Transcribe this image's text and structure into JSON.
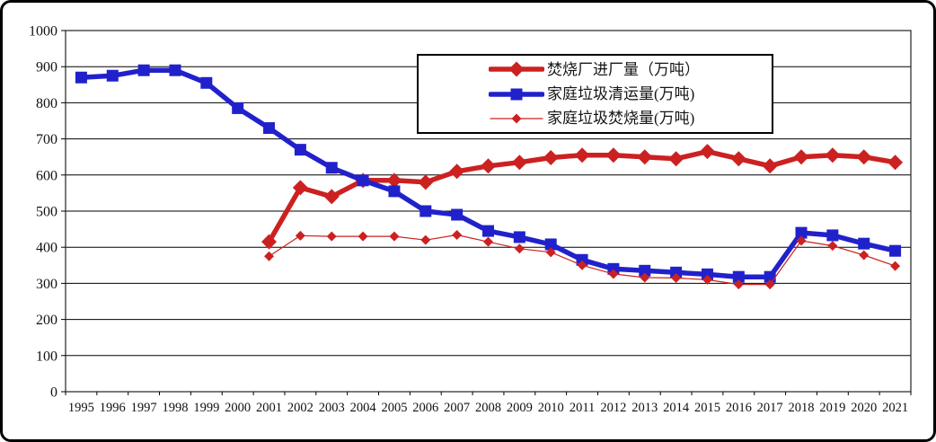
{
  "frame": {
    "background": "#ffffff",
    "border_color": "#000000",
    "plot_border_color": "#333333",
    "gridline_color": "#000000"
  },
  "chart_data": {
    "type": "line",
    "title": "",
    "xlabel": "",
    "ylabel": "",
    "grid": "horizontal",
    "legend_position": "top-center-boxed",
    "ylim": [
      0,
      1000
    ],
    "yticks": [
      0,
      100,
      200,
      300,
      400,
      500,
      600,
      700,
      800,
      900,
      1000
    ],
    "x": [
      "1995",
      "1996",
      "1997",
      "1998",
      "1999",
      "2000",
      "2001",
      "2002",
      "2003",
      "2004",
      "2005",
      "2006",
      "2007",
      "2008",
      "2009",
      "2010",
      "2011",
      "2012",
      "2013",
      "2014",
      "2015",
      "2016",
      "2017",
      "2018",
      "2019",
      "2020",
      "2021"
    ],
    "series": [
      {
        "name": "焚烧厂进厂量（万吨）",
        "color": "#cc2121",
        "line_width": 5.5,
        "marker": "diamond",
        "marker_size": 17,
        "values": [
          null,
          null,
          null,
          null,
          null,
          null,
          415,
          565,
          540,
          585,
          585,
          580,
          610,
          625,
          635,
          648,
          655,
          655,
          650,
          645,
          665,
          645,
          625,
          650,
          655,
          650,
          635
        ]
      },
      {
        "name": "家庭垃圾清运量(万吨)",
        "color": "#2121cc",
        "line_width": 5.5,
        "marker": "square",
        "marker_size": 13,
        "values": [
          870,
          875,
          890,
          890,
          855,
          785,
          730,
          670,
          620,
          585,
          555,
          500,
          490,
          445,
          428,
          408,
          365,
          340,
          335,
          330,
          325,
          318,
          318,
          440,
          433,
          410,
          390
        ]
      },
      {
        "name": "家庭垃圾焚烧量(万吨)",
        "color": "#cc2121",
        "line_width": 1.2,
        "marker": "diamond",
        "marker_size": 11,
        "values": [
          null,
          null,
          null,
          null,
          null,
          null,
          375,
          432,
          430,
          430,
          430,
          420,
          434,
          415,
          396,
          386,
          350,
          326,
          316,
          315,
          310,
          297,
          297,
          418,
          404,
          378,
          348
        ]
      }
    ]
  }
}
